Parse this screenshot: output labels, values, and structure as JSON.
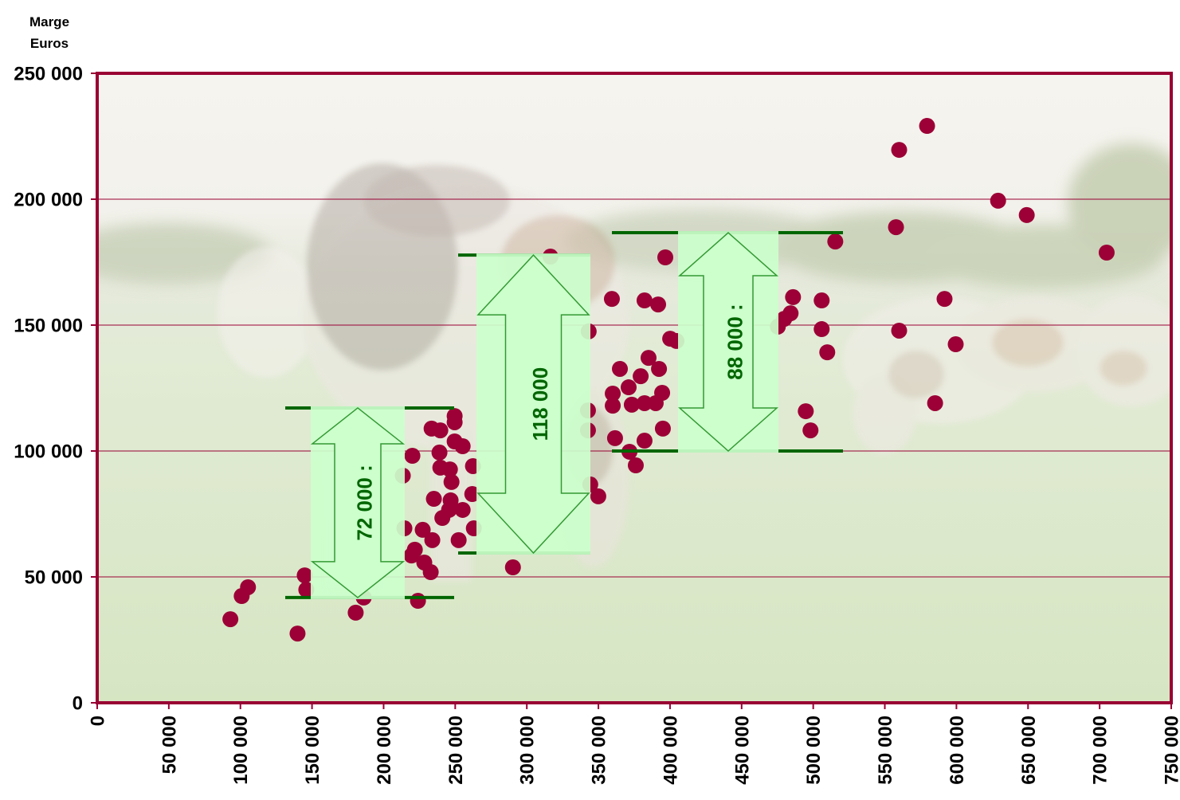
{
  "chart_data": {
    "type": "scatter",
    "ylabel_lines": [
      "Marge",
      "Euros"
    ],
    "xlim": [
      0,
      750000
    ],
    "ylim": [
      0,
      250000
    ],
    "grid": "horizontal",
    "x_ticks": [
      {
        "value": 0,
        "label": "0"
      },
      {
        "value": 50000,
        "label": "50 000"
      },
      {
        "value": 100000,
        "label": "100 000"
      },
      {
        "value": 150000,
        "label": "150 000"
      },
      {
        "value": 200000,
        "label": "200 000"
      },
      {
        "value": 250000,
        "label": "250 000"
      },
      {
        "value": 300000,
        "label": "300 000"
      },
      {
        "value": 350000,
        "label": "350 000"
      },
      {
        "value": 400000,
        "label": "400 000"
      },
      {
        "value": 450000,
        "label": "450 000"
      },
      {
        "value": 500000,
        "label": "500 000"
      },
      {
        "value": 550000,
        "label": "550 000"
      },
      {
        "value": 600000,
        "label": "600 000"
      },
      {
        "value": 650000,
        "label": "650 000"
      },
      {
        "value": 700000,
        "label": "700 000"
      },
      {
        "value": 750000,
        "label": "750 000"
      }
    ],
    "y_ticks": [
      {
        "value": 0,
        "label": "0"
      },
      {
        "value": 50000,
        "label": "50 000"
      },
      {
        "value": 100000,
        "label": "100 000"
      },
      {
        "value": 150000,
        "label": "150 000"
      },
      {
        "value": 200000,
        "label": "200 000"
      },
      {
        "value": 250000,
        "label": "250 000"
      }
    ],
    "points": [
      [
        93000,
        33200
      ],
      [
        100900,
        42400
      ],
      [
        105300,
        45900
      ],
      [
        139900,
        27500
      ],
      [
        144900,
        50600
      ],
      [
        146000,
        44900
      ],
      [
        180500,
        35800
      ],
      [
        186100,
        41800
      ],
      [
        213400,
        90200
      ],
      [
        214500,
        69300
      ],
      [
        219500,
        58500
      ],
      [
        220100,
        98100
      ],
      [
        221800,
        60800
      ],
      [
        224000,
        40500
      ],
      [
        227300,
        68700
      ],
      [
        228400,
        55700
      ],
      [
        232900,
        51900
      ],
      [
        234000,
        64600
      ],
      [
        235100,
        81000
      ],
      [
        233500,
        108900
      ],
      [
        239600,
        108200
      ],
      [
        239000,
        99400
      ],
      [
        239600,
        93400
      ],
      [
        246300,
        92700
      ],
      [
        247400,
        87700
      ],
      [
        249600,
        113900
      ],
      [
        249600,
        111400
      ],
      [
        249600,
        103800
      ],
      [
        255200,
        101900
      ],
      [
        246800,
        80400
      ],
      [
        245700,
        76600
      ],
      [
        255200,
        76600
      ],
      [
        252400,
        64600
      ],
      [
        241000,
        73400
      ],
      [
        262400,
        94000
      ],
      [
        261900,
        82900
      ],
      [
        263000,
        69300
      ],
      [
        290300,
        53800
      ],
      [
        316500,
        177200
      ],
      [
        343200,
        147500
      ],
      [
        342700,
        116100
      ],
      [
        342700,
        108200
      ],
      [
        344300,
        86700
      ],
      [
        349900,
        82000
      ],
      [
        359400,
        160400
      ],
      [
        360000,
        122800
      ],
      [
        360000,
        118000
      ],
      [
        361600,
        105100
      ],
      [
        365000,
        132600
      ],
      [
        371100,
        125300
      ],
      [
        373300,
        118400
      ],
      [
        371700,
        99700
      ],
      [
        376100,
        94300
      ],
      [
        379500,
        129700
      ],
      [
        382200,
        159800
      ],
      [
        382200,
        119000
      ],
      [
        382200,
        104100
      ],
      [
        385000,
        137000
      ],
      [
        390000,
        119000
      ],
      [
        391700,
        158200
      ],
      [
        392300,
        132600
      ],
      [
        394500,
        123100
      ],
      [
        395000,
        108900
      ],
      [
        396700,
        176900
      ],
      [
        400100,
        144600
      ],
      [
        404500,
        143700
      ],
      [
        475300,
        149400
      ],
      [
        479800,
        152500
      ],
      [
        484200,
        154700
      ],
      [
        485900,
        161100
      ],
      [
        494800,
        115800
      ],
      [
        498100,
        108200
      ],
      [
        505900,
        159800
      ],
      [
        505900,
        148400
      ],
      [
        509800,
        139200
      ],
      [
        515400,
        183200
      ],
      [
        557800,
        188900
      ],
      [
        560000,
        219600
      ],
      [
        560000,
        147800
      ],
      [
        579500,
        229100
      ],
      [
        585100,
        119000
      ],
      [
        591700,
        160400
      ],
      [
        599500,
        142400
      ],
      [
        629100,
        199400
      ],
      [
        649100,
        193700
      ],
      [
        704900,
        178800
      ]
    ],
    "annotations": [
      {
        "label": "72 000 :",
        "y_low": 41800,
        "y_high": 117100
      },
      {
        "label": "118 000",
        "y_low": 59500,
        "y_high": 177800
      },
      {
        "label": "88 000 :",
        "y_low": 100000,
        "y_high": 186700
      }
    ]
  },
  "colors": {
    "frame": "#990033",
    "gridline": "#990033",
    "point": "#9c0036",
    "range_line": "#006600",
    "annotation_text": "#006600",
    "annotation_fill": "#ccffcc",
    "arrow_outline": "#339933"
  }
}
